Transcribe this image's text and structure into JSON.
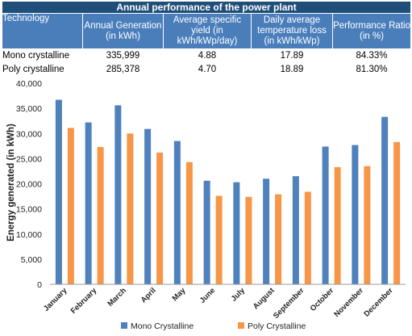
{
  "table": {
    "title": "Annual performance of the power plant",
    "headers": [
      "Technology",
      "Annual Generation (in kWh)",
      "Average specific yield (in kWh/kWp/day)",
      "Daily average temperature loss (in kWh/kWp)",
      "Performance Ratio (in %)"
    ],
    "rows": [
      [
        "Mono crystalline",
        "335,999",
        "4.88",
        "17.89",
        "84.33%"
      ],
      [
        "Poly crystalline",
        "285,378",
        "4.70",
        "18.89",
        "81.30%"
      ]
    ]
  },
  "chart_data": {
    "type": "bar",
    "title": "",
    "xlabel": "",
    "ylabel": "Energy generated (in kWh)",
    "ylim": [
      0,
      40000
    ],
    "yticks": [
      0,
      5000,
      10000,
      15000,
      20000,
      25000,
      30000,
      35000,
      40000
    ],
    "ytick_labels": [
      "0",
      "5,000",
      "10,000",
      "15,000",
      "20,000",
      "25,000",
      "30,000",
      "35,000",
      "40,000"
    ],
    "grid": false,
    "legend_position": "bottom",
    "categories": [
      "January",
      "February",
      "March",
      "April",
      "May",
      "June",
      "July",
      "August",
      "September",
      "October",
      "November",
      "December"
    ],
    "series": [
      {
        "name": "Mono Crystalline",
        "color": "#4f81bd",
        "values": [
          36700,
          32200,
          35600,
          30900,
          28500,
          20600,
          20300,
          21000,
          21500,
          27400,
          27700,
          33300
        ]
      },
      {
        "name": "Poly Crystalline",
        "color": "#f79646",
        "values": [
          31100,
          27300,
          30000,
          26200,
          24300,
          17600,
          17400,
          17900,
          18400,
          23300,
          23500,
          28300
        ]
      }
    ]
  }
}
